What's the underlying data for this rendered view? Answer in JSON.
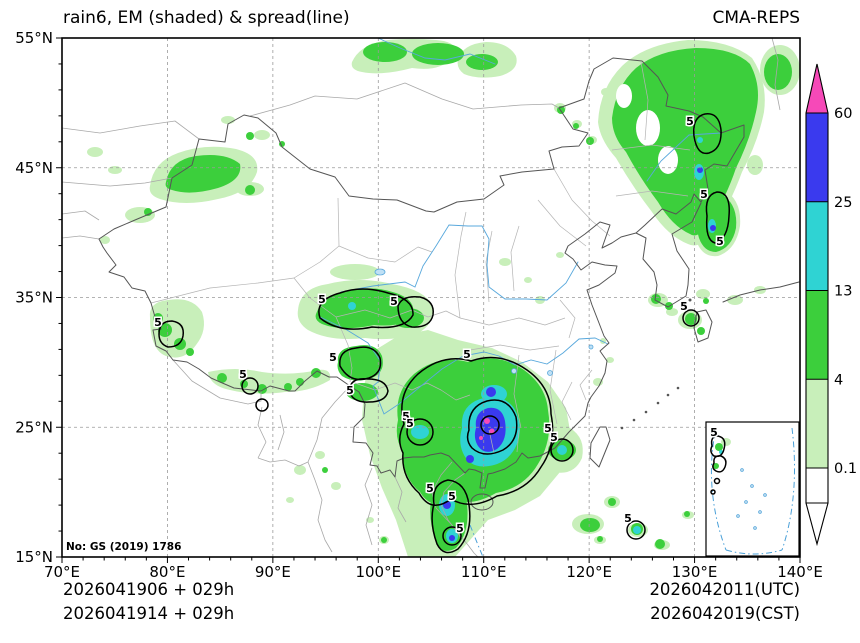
{
  "header": {
    "title": "rain6, EM (shaded) & spread(line)",
    "model": "CMA-REPS"
  },
  "footer": {
    "left_line1": "2026041906  +  029h",
    "left_line2": "2026041914  +  029h",
    "right_line1": "2026042011(UTC)",
    "right_line2": "2026042019(CST)"
  },
  "map": {
    "note": "No: GS (2019) 1786"
  },
  "chart_data": {
    "type": "heatmap",
    "title": "rain6, EM (shaded) & spread(line)",
    "source_label": "CMA-REPS",
    "x_axis": {
      "range": [
        70,
        140
      ],
      "major_ticks": [
        70,
        80,
        90,
        100,
        110,
        120,
        130,
        140
      ],
      "tick_suffix": "°E",
      "minor_step": 2
    },
    "y_axis": {
      "range": [
        15,
        55
      ],
      "major_ticks": [
        15,
        25,
        35,
        45,
        55
      ],
      "tick_suffix": "°N",
      "minor_step": 2
    },
    "colorbar": {
      "levels": [
        "0.1",
        "4",
        "13",
        "25",
        "60"
      ],
      "segment_colors_bottom_to_top": [
        "#ffffff",
        "#c8efba",
        "#3ccf3c",
        "#2fd3d3",
        "#3a3aee"
      ],
      "over_color": "#f649b8",
      "under_color": "#ffffff"
    },
    "spread_contour_label": "5",
    "shaded_field": "rain6 ensemble mean (shaded)",
    "line_field": "ensemble spread (line)",
    "grid": "dashed 10-degree lat/lon",
    "annotations": {
      "license": "No: GS (2019) 1786"
    }
  }
}
